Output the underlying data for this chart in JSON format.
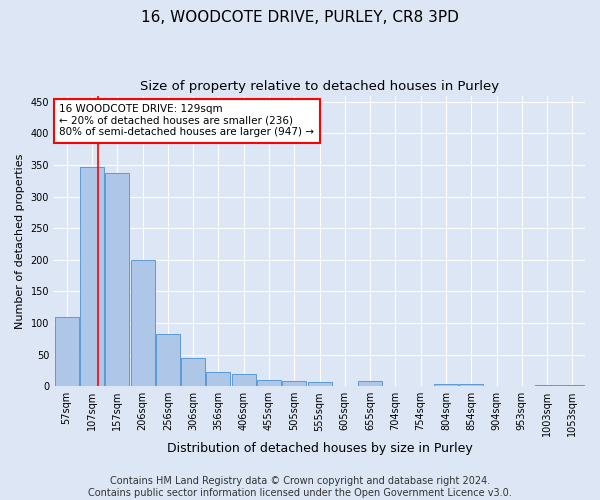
{
  "title": "16, WOODCOTE DRIVE, PURLEY, CR8 3PD",
  "subtitle": "Size of property relative to detached houses in Purley",
  "xlabel": "Distribution of detached houses by size in Purley",
  "ylabel": "Number of detached properties",
  "categories": [
    "57sqm",
    "107sqm",
    "157sqm",
    "206sqm",
    "256sqm",
    "306sqm",
    "356sqm",
    "406sqm",
    "455sqm",
    "505sqm",
    "555sqm",
    "605sqm",
    "655sqm",
    "704sqm",
    "754sqm",
    "804sqm",
    "854sqm",
    "904sqm",
    "953sqm",
    "1003sqm",
    "1053sqm"
  ],
  "values": [
    110,
    347,
    338,
    200,
    82,
    45,
    23,
    20,
    10,
    8,
    7,
    0,
    8,
    0,
    0,
    4,
    3,
    0,
    0,
    2,
    2
  ],
  "bar_color": "#aec6e8",
  "bar_edge_color": "#5b9bd5",
  "red_line_x": 1.22,
  "annotation_line1": "16 WOODCOTE DRIVE: 129sqm",
  "annotation_line2": "← 20% of detached houses are smaller (236)",
  "annotation_line3": "80% of semi-detached houses are larger (947) →",
  "annotation_box_color": "white",
  "annotation_box_edge": "red",
  "ylim": [
    0,
    460
  ],
  "yticks": [
    0,
    50,
    100,
    150,
    200,
    250,
    300,
    350,
    400,
    450
  ],
  "footer_line1": "Contains HM Land Registry data © Crown copyright and database right 2024.",
  "footer_line2": "Contains public sector information licensed under the Open Government Licence v3.0.",
  "background_color": "#dce6f5",
  "plot_bg_color": "#dce6f5",
  "grid_color": "white",
  "title_fontsize": 11,
  "subtitle_fontsize": 9.5,
  "xlabel_fontsize": 9,
  "ylabel_fontsize": 8,
  "tick_fontsize": 7,
  "footer_fontsize": 7
}
